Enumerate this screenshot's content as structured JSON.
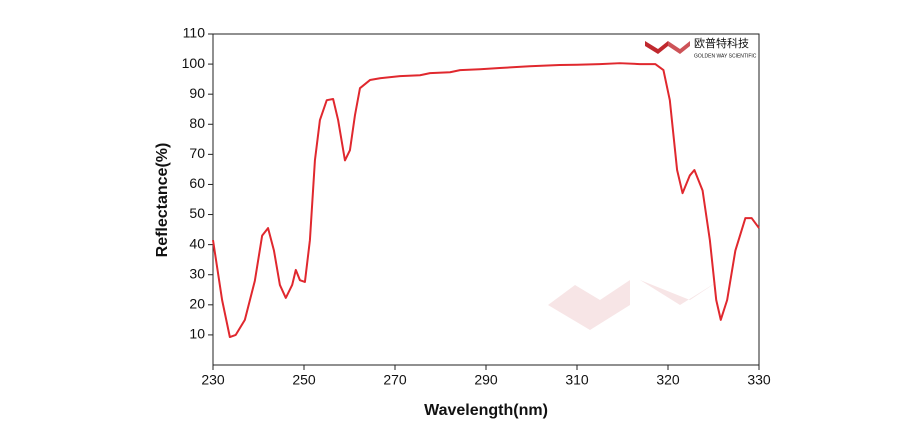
{
  "chart_data": {
    "type": "line",
    "xlabel": "Wavelength(nm)",
    "ylabel": "Reflectance(%)",
    "logo": {
      "name": "欧普特科技",
      "subtitle": "GOLDEN WAY SCIENTIFIC"
    },
    "xlim": [
      230,
      330
    ],
    "xticks": [
      230,
      250,
      270,
      290,
      310,
      320,
      330
    ],
    "ylim": [
      0,
      110
    ],
    "yticks": [
      10,
      20,
      30,
      40,
      50,
      60,
      70,
      80,
      90,
      100,
      110
    ],
    "series": [
      {
        "color": "#e0282e",
        "x": [
          230,
          232,
          233.7,
          235,
          237,
          239.2,
          240.8,
          242.1,
          243.4,
          244.7,
          246,
          247.4,
          248.2,
          249.1,
          250.2,
          251.3,
          252.4,
          253.5,
          255,
          256.4,
          257.5,
          259,
          260.1,
          261.2,
          262.3,
          264.5,
          266.7,
          271.1,
          275.5,
          277.7,
          282.1,
          284.3,
          288.7,
          293,
          299.6,
          306.2,
          310,
          312.5,
          314.7,
          316.9,
          318.6,
          319.5,
          320.2,
          321,
          321.6,
          322.4,
          322.9,
          323.8,
          324.6,
          325.3,
          325.8,
          326.5,
          327.4,
          328.5,
          329.2,
          330
        ],
        "values": [
          41.5,
          21.6,
          9.3,
          10,
          15,
          28,
          43,
          45.5,
          38,
          26.6,
          22.3,
          26.6,
          31.6,
          28.2,
          27.6,
          41.5,
          68,
          81.4,
          88,
          88.4,
          81.4,
          68,
          71.4,
          83,
          92,
          94.7,
          95.3,
          96,
          96.3,
          97,
          97.3,
          98,
          98.3,
          98.7,
          99.3,
          99.7,
          99.8,
          100,
          100.3,
          100,
          100,
          98,
          88,
          64.8,
          57.1,
          63,
          64.8,
          58,
          41.5,
          21.6,
          15,
          21.6,
          38,
          48.8,
          48.8,
          45.5
        ]
      }
    ]
  }
}
